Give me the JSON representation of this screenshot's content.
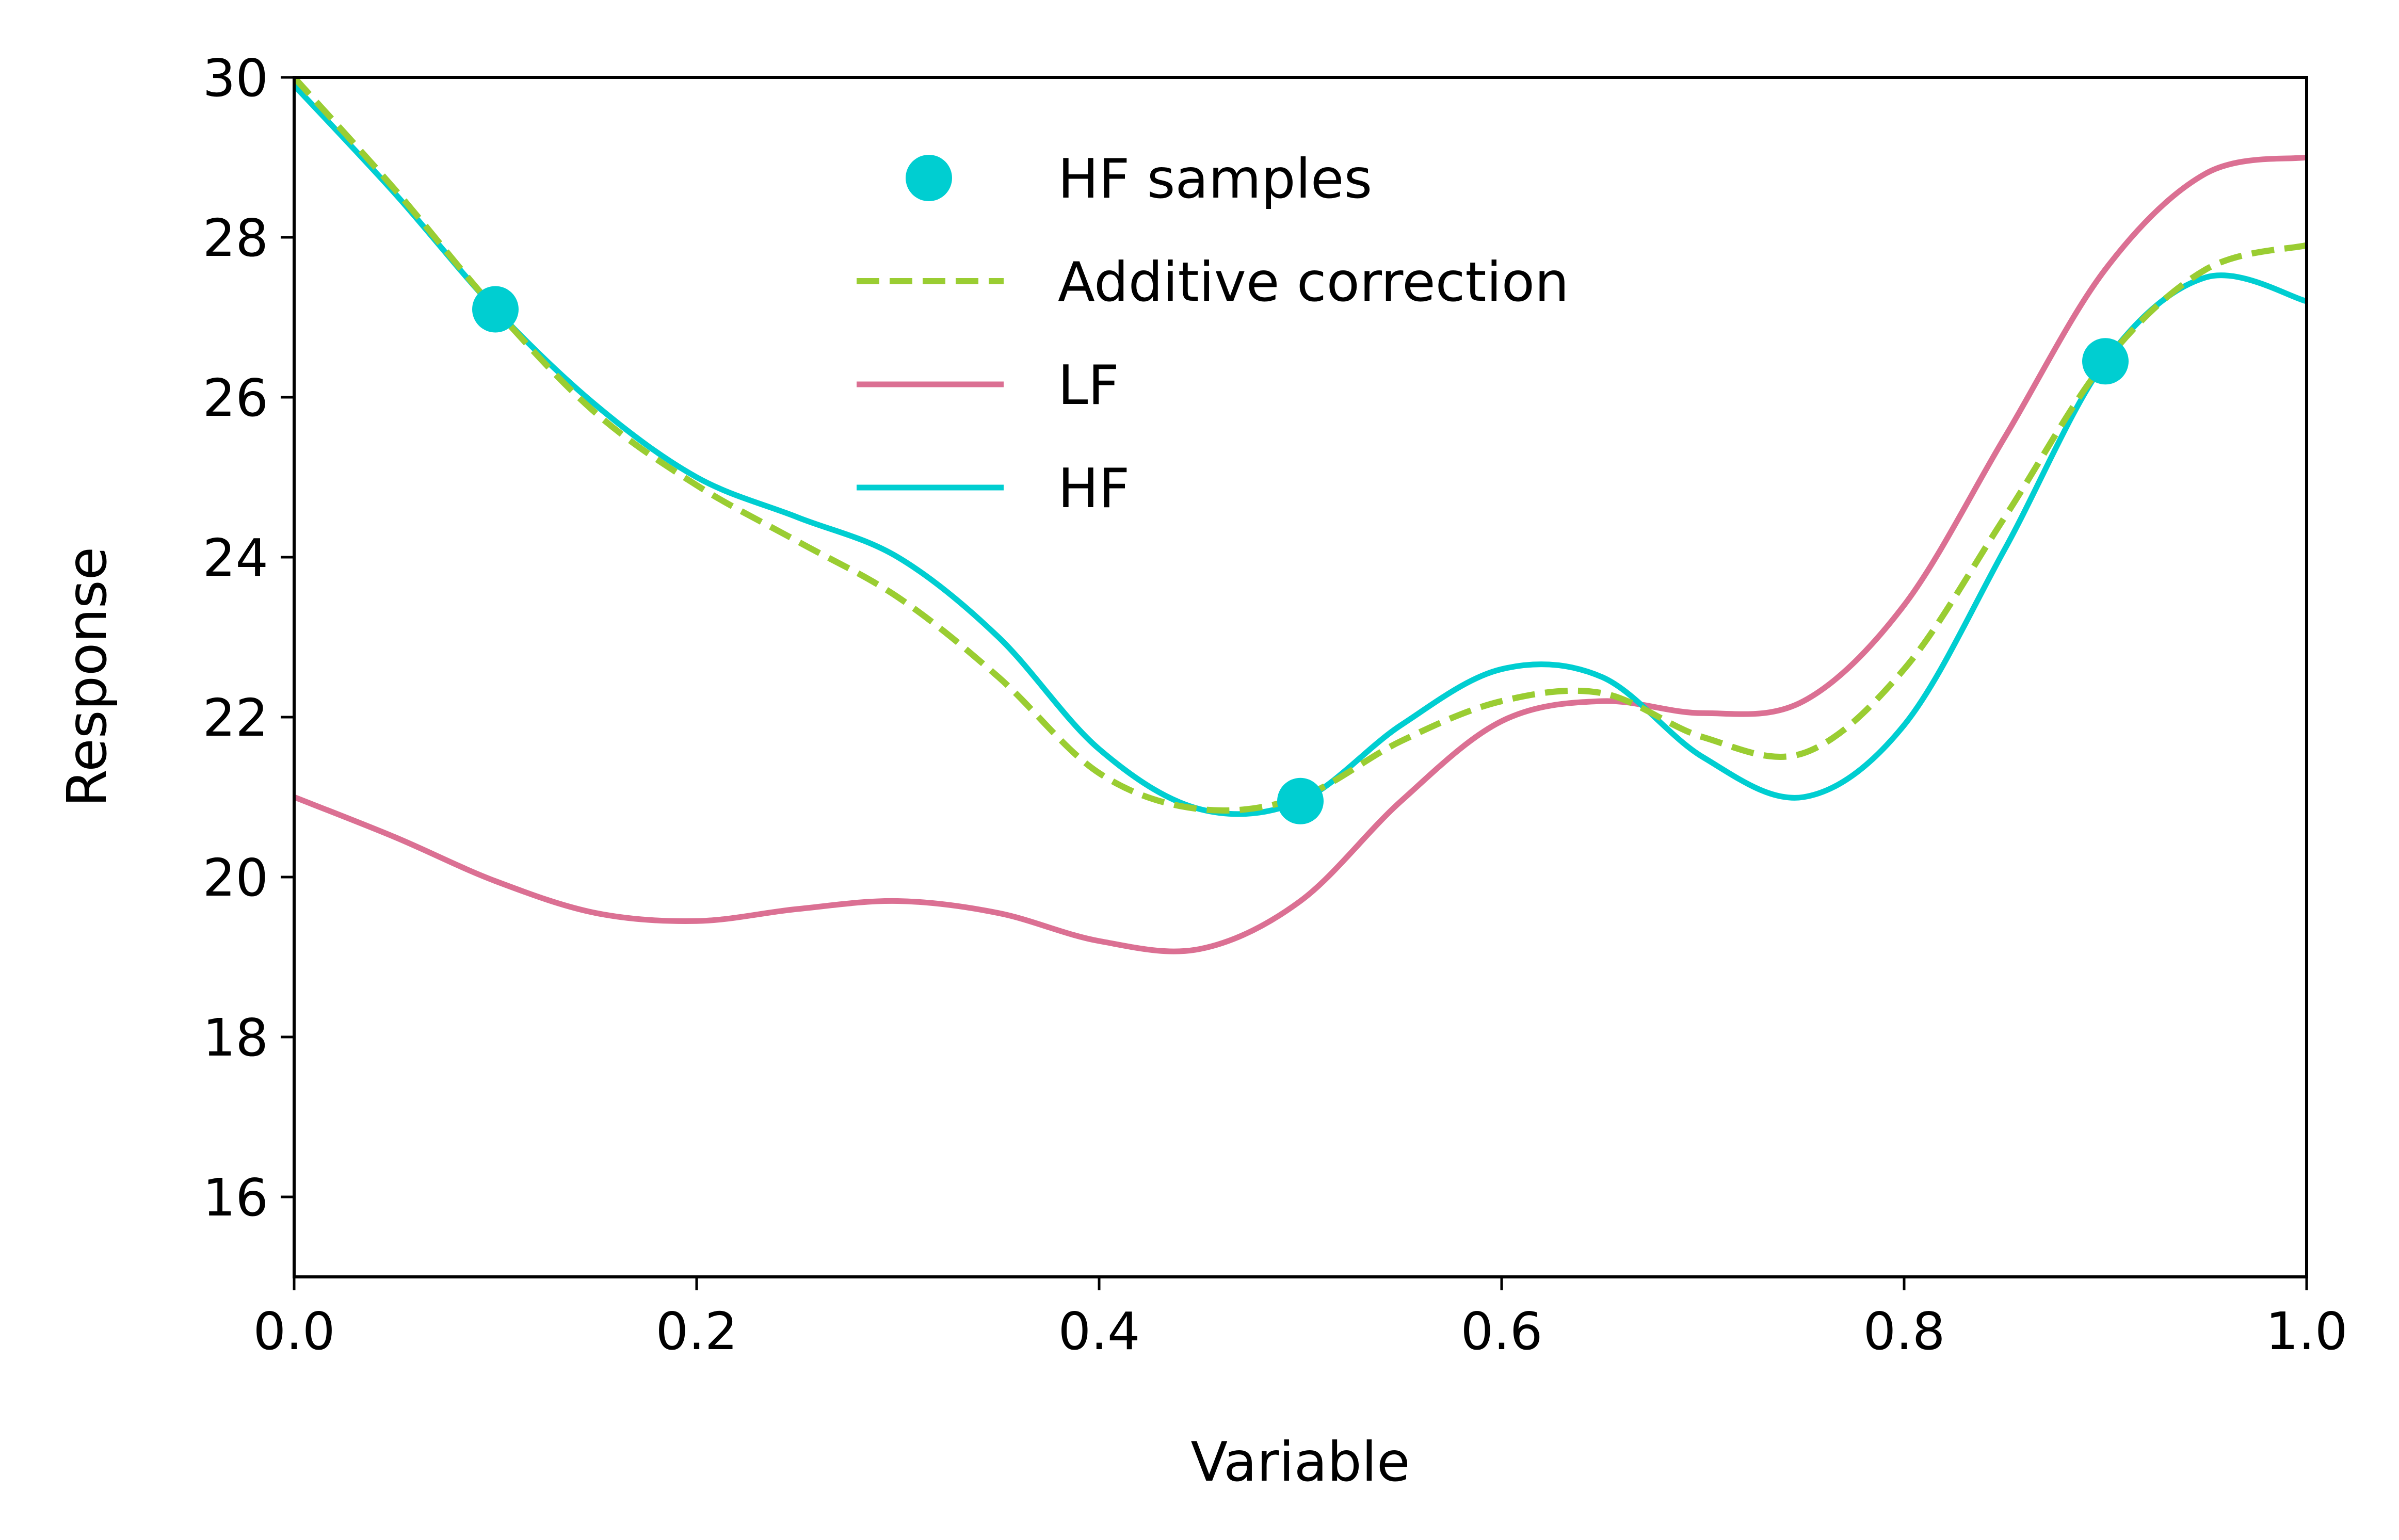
{
  "chart_data": {
    "type": "line",
    "title": "",
    "xlabel": "Variable",
    "ylabel": "Response",
    "xlim": [
      0.0,
      1.0
    ],
    "ylim": [
      15,
      30
    ],
    "xticks": [
      0.0,
      0.2,
      0.4,
      0.6,
      0.8,
      1.0
    ],
    "xtick_labels": [
      "0.0",
      "0.2",
      "0.4",
      "0.6",
      "0.8",
      "1.0"
    ],
    "yticks": [
      16,
      18,
      20,
      22,
      24,
      26,
      28,
      30
    ],
    "ytick_labels": [
      "16",
      "18",
      "20",
      "22",
      "24",
      "26",
      "28",
      "30"
    ],
    "grid": false,
    "legend_position": "top-center",
    "series": [
      {
        "name": "HF samples",
        "kind": "scatter",
        "color": "#00ced1",
        "x": [
          0.1,
          0.5,
          0.9
        ],
        "y": [
          27.1,
          20.95,
          26.45
        ]
      },
      {
        "name": "Additive correction",
        "kind": "line",
        "style": "dashed",
        "color": "#9acd32",
        "x": [
          0.0,
          0.05,
          0.1,
          0.15,
          0.2,
          0.25,
          0.3,
          0.35,
          0.4,
          0.45,
          0.5,
          0.55,
          0.6,
          0.65,
          0.7,
          0.75,
          0.8,
          0.85,
          0.9,
          0.95,
          1.0
        ],
        "y": [
          30.0,
          28.6,
          27.1,
          25.8,
          24.9,
          24.2,
          23.5,
          22.5,
          21.3,
          20.85,
          21.0,
          21.7,
          22.2,
          22.3,
          21.75,
          21.55,
          22.6,
          24.5,
          26.45,
          27.6,
          27.9
        ]
      },
      {
        "name": "LF",
        "kind": "line",
        "style": "solid",
        "color": "#db7093",
        "x": [
          0.0,
          0.05,
          0.1,
          0.15,
          0.2,
          0.25,
          0.3,
          0.35,
          0.4,
          0.45,
          0.5,
          0.55,
          0.6,
          0.65,
          0.7,
          0.75,
          0.8,
          0.85,
          0.9,
          0.95,
          1.0
        ],
        "y": [
          21.0,
          20.5,
          19.95,
          19.55,
          19.45,
          19.6,
          19.7,
          19.55,
          19.2,
          19.1,
          19.7,
          20.95,
          21.95,
          22.2,
          22.05,
          22.2,
          23.4,
          25.5,
          27.6,
          28.8,
          29.0
        ]
      },
      {
        "name": "HF",
        "kind": "line",
        "style": "solid",
        "color": "#00ced1",
        "x": [
          0.0,
          0.05,
          0.1,
          0.15,
          0.2,
          0.25,
          0.3,
          0.35,
          0.4,
          0.45,
          0.5,
          0.55,
          0.6,
          0.65,
          0.7,
          0.75,
          0.8,
          0.85,
          0.9,
          0.95,
          1.0
        ],
        "y": [
          29.9,
          28.55,
          27.1,
          25.9,
          25.0,
          24.5,
          24.0,
          23.0,
          21.6,
          20.85,
          20.95,
          21.9,
          22.6,
          22.5,
          21.5,
          21.0,
          21.9,
          24.1,
          26.45,
          27.5,
          27.2
        ]
      }
    ]
  }
}
